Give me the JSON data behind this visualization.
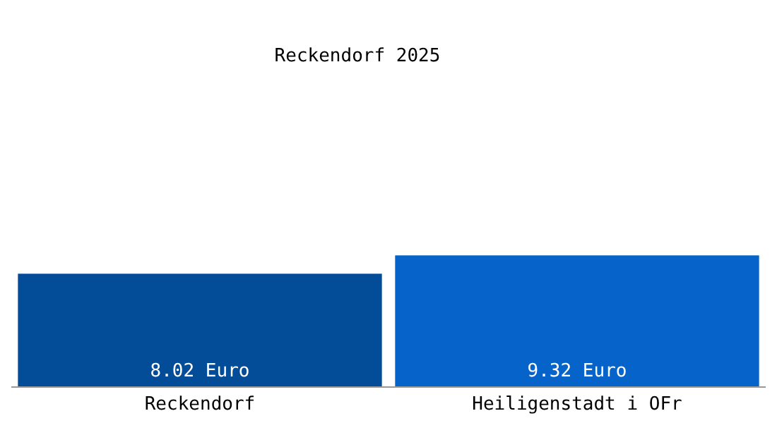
{
  "chart_data": {
    "type": "bar",
    "title": "Reckendorf 2025",
    "categories": [
      "Reckendorf",
      "Heiligenstadt i OFr"
    ],
    "values": [
      8.02,
      9.32
    ],
    "colors": [
      "#034c97",
      "#0563c9"
    ],
    "value_labels": [
      "8.02 Euro",
      "9.32 Euro"
    ]
  }
}
